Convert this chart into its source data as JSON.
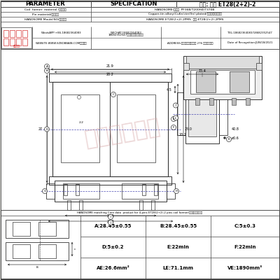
{
  "title": "品名: 焕升 ET28(2+2)-2",
  "spec_title": "SPECIFCATION",
  "param_title": "PARAMETER",
  "bg_color": "#f5f5f0",
  "border_color": "#444444",
  "header_rows": [
    [
      "Coil  former  material /线圈材料",
      "HANDSOME(恒方）  PF36B/T200H4(T370B"
    ],
    [
      "Pin material/端子材料",
      "Copper-tin allory(Cu6n),tin(Sn) plated/铜合联锡银包覆处"
    ],
    [
      "HANDSOME Mould NO/恒方品名",
      "HANDSOME-ET28(2+2)-2PMS  焕升-ET28(2+2)-2PMS"
    ]
  ],
  "company_info_row1": {
    "whatsapp": "WhatsAPP:+86-18682364083",
    "wechat": "WECHAT:18682364083\n18682352547（微信同号）未定请加",
    "tel": "TEL:18682364083/18682352547"
  },
  "company_info_row2": {
    "website": "WEBSITE:WWW.SZBOBBAIN.COM（网站）",
    "address": "ADDRESS:东莞市石排下沙大道 276 号恒升工业园",
    "date": "Date of Recognition:JUN/18/2021"
  },
  "core_data_title": "HANDSOME matching Core data  product for 4-pins ET28(2+2)-2 pins coil former/磁升磁芯相关数据",
  "spec_table": {
    "A": "28.45±0.55",
    "B": "28.45±0.55",
    "C": "5±0.3",
    "D": "5±0.2",
    "E": "22min",
    "F": "22min",
    "AE": "26.6mm²",
    "LE": "71.1mm",
    "VE": "1890mm³"
  },
  "watermark_text": "众凯塑料有限",
  "watermark_color": "#d4a0a0",
  "line_color": "#333333",
  "dim_color": "#222222",
  "blue_dash": "#3333aa"
}
